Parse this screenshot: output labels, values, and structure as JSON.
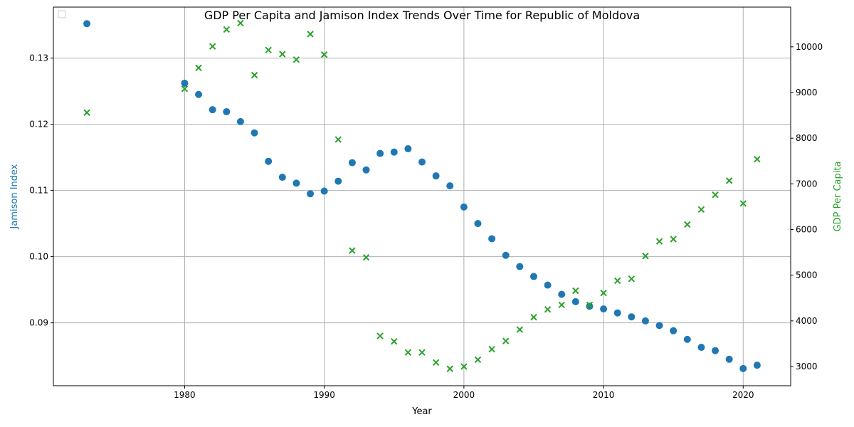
{
  "chart_data": {
    "type": "scatter",
    "title": "GDP Per Capita and Jamison Index Trends Over Time for Republic of Moldova",
    "xlabel": "Year",
    "ylabel_left": "Jamison Index",
    "ylabel_right": "GDP Per Capita",
    "xlim": [
      1970.6,
      2023.4
    ],
    "ylim_left": [
      0.0805,
      0.1377
    ],
    "ylim_right": [
      2580,
      10870
    ],
    "x_ticks": [
      1980,
      1990,
      2000,
      2010,
      2020
    ],
    "y_ticks_left": [
      "0.09",
      "0.10",
      "0.11",
      "0.12",
      "0.13"
    ],
    "y_ticks_right": [
      3000,
      4000,
      5000,
      6000,
      7000,
      8000,
      9000,
      10000
    ],
    "grid": true,
    "legend": "top-left (empty)",
    "colors": {
      "left": "#1f77b4",
      "right": "#2ca02c"
    },
    "series": [
      {
        "axis": "left",
        "marker": "circle",
        "x": [
          1973,
          1980,
          1981,
          1982,
          1983,
          1984,
          1985,
          1986,
          1987,
          1988,
          1989,
          1990,
          1991,
          1992,
          1993,
          1994,
          1995,
          1996,
          1997,
          1998,
          1999,
          2000,
          2001,
          2002,
          2003,
          2004,
          2005,
          2006,
          2007,
          2008,
          2009,
          2010,
          2011,
          2012,
          2013,
          2014,
          2015,
          2016,
          2017,
          2018,
          2019,
          2020,
          2021
        ],
        "values": [
          0.1352,
          0.1262,
          0.1245,
          0.1222,
          0.1219,
          0.1204,
          0.1187,
          0.1144,
          0.112,
          0.1111,
          0.1095,
          0.1099,
          0.1114,
          0.1142,
          0.1131,
          0.1156,
          0.1158,
          0.1163,
          0.1143,
          0.1122,
          0.1107,
          0.1075,
          0.105,
          0.1027,
          0.1002,
          0.0985,
          0.097,
          0.0957,
          0.0943,
          0.0932,
          0.0925,
          0.0921,
          0.0915,
          0.0909,
          0.0903,
          0.0896,
          0.0888,
          0.0875,
          0.0863,
          0.0858,
          0.0845,
          0.0831,
          0.0836
        ]
      },
      {
        "axis": "right",
        "marker": "x",
        "x": [
          1973,
          1980,
          1981,
          1982,
          1983,
          1984,
          1985,
          1986,
          1987,
          1988,
          1989,
          1990,
          1991,
          1992,
          1993,
          1994,
          1995,
          1996,
          1997,
          1998,
          1999,
          2000,
          2001,
          2002,
          2003,
          2004,
          2005,
          2006,
          2007,
          2008,
          2009,
          2010,
          2011,
          2012,
          2013,
          2014,
          2015,
          2016,
          2017,
          2018,
          2019,
          2020,
          2021
        ],
        "values": [
          8560,
          9080,
          9540,
          10010,
          10380,
          10520,
          9380,
          9930,
          9840,
          9720,
          10280,
          9830,
          7970,
          5540,
          5390,
          3670,
          3550,
          3310,
          3310,
          3090,
          2950,
          3000,
          3150,
          3380,
          3560,
          3810,
          4080,
          4250,
          4350,
          4660,
          4350,
          4610,
          4880,
          4920,
          5420,
          5740,
          5790,
          6110,
          6440,
          6760,
          7070,
          6570,
          7540
        ]
      }
    ]
  }
}
